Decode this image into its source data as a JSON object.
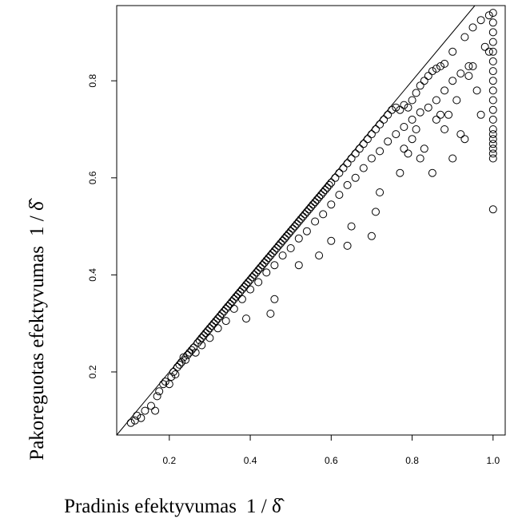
{
  "chart_data": {
    "type": "scatter",
    "title": "",
    "xlabel": "Pradinis efektyvumas",
    "ylabel": "Pakoreguotas efektyvumas",
    "label_formula": "1 / δ̂",
    "xlim": [
      0.07,
      1.03
    ],
    "ylim": [
      0.07,
      0.955
    ],
    "x_ticks": [
      {
        "value": 0.2,
        "label": "0.2"
      },
      {
        "value": 0.4,
        "label": "0.4"
      },
      {
        "value": 0.6,
        "label": "0.6"
      },
      {
        "value": 0.8,
        "label": "0.8"
      },
      {
        "value": 1.0,
        "label": "1.0"
      }
    ],
    "y_ticks": [
      {
        "value": 0.2,
        "label": "0.2"
      },
      {
        "value": 0.4,
        "label": "0.4"
      },
      {
        "value": 0.6,
        "label": "0.6"
      },
      {
        "value": 0.8,
        "label": "0.8"
      }
    ],
    "reference_line": {
      "slope": 1,
      "intercept": 0
    },
    "grid": false,
    "marker": "open-circle",
    "marker_color": "#000000",
    "points": [
      [
        0.105,
        0.095
      ],
      [
        0.115,
        0.1
      ],
      [
        0.12,
        0.11
      ],
      [
        0.13,
        0.105
      ],
      [
        0.14,
        0.12
      ],
      [
        0.155,
        0.13
      ],
      [
        0.165,
        0.12
      ],
      [
        0.17,
        0.15
      ],
      [
        0.175,
        0.16
      ],
      [
        0.185,
        0.175
      ],
      [
        0.19,
        0.18
      ],
      [
        0.2,
        0.175
      ],
      [
        0.205,
        0.19
      ],
      [
        0.21,
        0.2
      ],
      [
        0.215,
        0.195
      ],
      [
        0.22,
        0.21
      ],
      [
        0.225,
        0.215
      ],
      [
        0.23,
        0.22
      ],
      [
        0.235,
        0.23
      ],
      [
        0.24,
        0.225
      ],
      [
        0.245,
        0.235
      ],
      [
        0.25,
        0.24
      ],
      [
        0.255,
        0.245
      ],
      [
        0.26,
        0.25
      ],
      [
        0.265,
        0.24
      ],
      [
        0.27,
        0.26
      ],
      [
        0.275,
        0.265
      ],
      [
        0.28,
        0.27
      ],
      [
        0.285,
        0.275
      ],
      [
        0.29,
        0.28
      ],
      [
        0.295,
        0.285
      ],
      [
        0.3,
        0.29
      ],
      [
        0.305,
        0.295
      ],
      [
        0.31,
        0.3
      ],
      [
        0.315,
        0.305
      ],
      [
        0.32,
        0.31
      ],
      [
        0.325,
        0.315
      ],
      [
        0.33,
        0.32
      ],
      [
        0.335,
        0.325
      ],
      [
        0.34,
        0.33
      ],
      [
        0.345,
        0.335
      ],
      [
        0.35,
        0.34
      ],
      [
        0.355,
        0.345
      ],
      [
        0.36,
        0.35
      ],
      [
        0.365,
        0.355
      ],
      [
        0.37,
        0.36
      ],
      [
        0.375,
        0.365
      ],
      [
        0.38,
        0.37
      ],
      [
        0.385,
        0.375
      ],
      [
        0.39,
        0.38
      ],
      [
        0.395,
        0.385
      ],
      [
        0.4,
        0.39
      ],
      [
        0.405,
        0.395
      ],
      [
        0.41,
        0.4
      ],
      [
        0.415,
        0.405
      ],
      [
        0.42,
        0.41
      ],
      [
        0.425,
        0.415
      ],
      [
        0.43,
        0.42
      ],
      [
        0.435,
        0.425
      ],
      [
        0.44,
        0.43
      ],
      [
        0.445,
        0.435
      ],
      [
        0.45,
        0.44
      ],
      [
        0.455,
        0.445
      ],
      [
        0.46,
        0.45
      ],
      [
        0.465,
        0.455
      ],
      [
        0.47,
        0.46
      ],
      [
        0.475,
        0.465
      ],
      [
        0.48,
        0.47
      ],
      [
        0.485,
        0.475
      ],
      [
        0.49,
        0.48
      ],
      [
        0.495,
        0.485
      ],
      [
        0.5,
        0.49
      ],
      [
        0.505,
        0.495
      ],
      [
        0.51,
        0.5
      ],
      [
        0.515,
        0.505
      ],
      [
        0.52,
        0.51
      ],
      [
        0.525,
        0.515
      ],
      [
        0.53,
        0.52
      ],
      [
        0.535,
        0.525
      ],
      [
        0.54,
        0.53
      ],
      [
        0.545,
        0.535
      ],
      [
        0.55,
        0.54
      ],
      [
        0.555,
        0.545
      ],
      [
        0.56,
        0.55
      ],
      [
        0.565,
        0.555
      ],
      [
        0.57,
        0.56
      ],
      [
        0.575,
        0.565
      ],
      [
        0.58,
        0.57
      ],
      [
        0.585,
        0.575
      ],
      [
        0.59,
        0.58
      ],
      [
        0.595,
        0.585
      ],
      [
        0.6,
        0.59
      ],
      [
        0.61,
        0.6
      ],
      [
        0.62,
        0.61
      ],
      [
        0.63,
        0.62
      ],
      [
        0.64,
        0.63
      ],
      [
        0.65,
        0.64
      ],
      [
        0.66,
        0.65
      ],
      [
        0.67,
        0.66
      ],
      [
        0.68,
        0.67
      ],
      [
        0.69,
        0.68
      ],
      [
        0.7,
        0.69
      ],
      [
        0.71,
        0.7
      ],
      [
        0.72,
        0.71
      ],
      [
        0.73,
        0.72
      ],
      [
        0.74,
        0.73
      ],
      [
        0.75,
        0.74
      ],
      [
        0.76,
        0.745
      ],
      [
        0.77,
        0.74
      ],
      [
        0.78,
        0.75
      ],
      [
        0.79,
        0.745
      ],
      [
        0.8,
        0.76
      ],
      [
        0.81,
        0.775
      ],
      [
        0.82,
        0.79
      ],
      [
        0.83,
        0.8
      ],
      [
        0.84,
        0.81
      ],
      [
        0.85,
        0.82
      ],
      [
        0.86,
        0.825
      ],
      [
        0.87,
        0.83
      ],
      [
        0.88,
        0.835
      ],
      [
        0.9,
        0.86
      ],
      [
        0.93,
        0.89
      ],
      [
        0.95,
        0.91
      ],
      [
        0.97,
        0.925
      ],
      [
        0.99,
        0.935
      ],
      [
        1.0,
        0.94
      ],
      [
        0.28,
        0.255
      ],
      [
        0.3,
        0.27
      ],
      [
        0.32,
        0.29
      ],
      [
        0.34,
        0.305
      ],
      [
        0.36,
        0.33
      ],
      [
        0.38,
        0.35
      ],
      [
        0.4,
        0.37
      ],
      [
        0.42,
        0.385
      ],
      [
        0.44,
        0.405
      ],
      [
        0.46,
        0.42
      ],
      [
        0.48,
        0.44
      ],
      [
        0.5,
        0.455
      ],
      [
        0.52,
        0.475
      ],
      [
        0.54,
        0.49
      ],
      [
        0.56,
        0.51
      ],
      [
        0.58,
        0.525
      ],
      [
        0.6,
        0.545
      ],
      [
        0.62,
        0.565
      ],
      [
        0.64,
        0.585
      ],
      [
        0.66,
        0.6
      ],
      [
        0.68,
        0.62
      ],
      [
        0.7,
        0.64
      ],
      [
        0.72,
        0.655
      ],
      [
        0.74,
        0.675
      ],
      [
        0.76,
        0.69
      ],
      [
        0.78,
        0.705
      ],
      [
        0.8,
        0.72
      ],
      [
        0.82,
        0.735
      ],
      [
        0.84,
        0.745
      ],
      [
        0.86,
        0.76
      ],
      [
        0.88,
        0.78
      ],
      [
        0.9,
        0.8
      ],
      [
        0.92,
        0.815
      ],
      [
        0.94,
        0.83
      ],
      [
        0.39,
        0.31
      ],
      [
        0.45,
        0.32
      ],
      [
        0.46,
        0.35
      ],
      [
        0.52,
        0.42
      ],
      [
        0.57,
        0.44
      ],
      [
        0.6,
        0.47
      ],
      [
        0.64,
        0.46
      ],
      [
        0.65,
        0.5
      ],
      [
        0.7,
        0.48
      ],
      [
        0.71,
        0.53
      ],
      [
        0.72,
        0.57
      ],
      [
        0.77,
        0.61
      ],
      [
        0.78,
        0.66
      ],
      [
        0.79,
        0.65
      ],
      [
        0.8,
        0.68
      ],
      [
        0.81,
        0.7
      ],
      [
        0.82,
        0.64
      ],
      [
        0.83,
        0.66
      ],
      [
        0.85,
        0.61
      ],
      [
        0.86,
        0.72
      ],
      [
        0.87,
        0.73
      ],
      [
        0.88,
        0.7
      ],
      [
        0.89,
        0.73
      ],
      [
        0.9,
        0.64
      ],
      [
        0.91,
        0.76
      ],
      [
        0.92,
        0.69
      ],
      [
        0.93,
        0.68
      ],
      [
        0.94,
        0.81
      ],
      [
        0.95,
        0.83
      ],
      [
        0.96,
        0.78
      ],
      [
        0.97,
        0.73
      ],
      [
        0.98,
        0.87
      ],
      [
        0.99,
        0.86
      ],
      [
        1.0,
        0.535
      ],
      [
        1.0,
        0.64
      ],
      [
        1.0,
        0.65
      ],
      [
        1.0,
        0.66
      ],
      [
        1.0,
        0.67
      ],
      [
        1.0,
        0.68
      ],
      [
        1.0,
        0.69
      ],
      [
        1.0,
        0.7
      ],
      [
        1.0,
        0.72
      ],
      [
        1.0,
        0.74
      ],
      [
        1.0,
        0.76
      ],
      [
        1.0,
        0.78
      ],
      [
        1.0,
        0.8
      ],
      [
        1.0,
        0.82
      ],
      [
        1.0,
        0.84
      ],
      [
        1.0,
        0.86
      ],
      [
        1.0,
        0.88
      ],
      [
        1.0,
        0.9
      ],
      [
        1.0,
        0.92
      ]
    ]
  }
}
